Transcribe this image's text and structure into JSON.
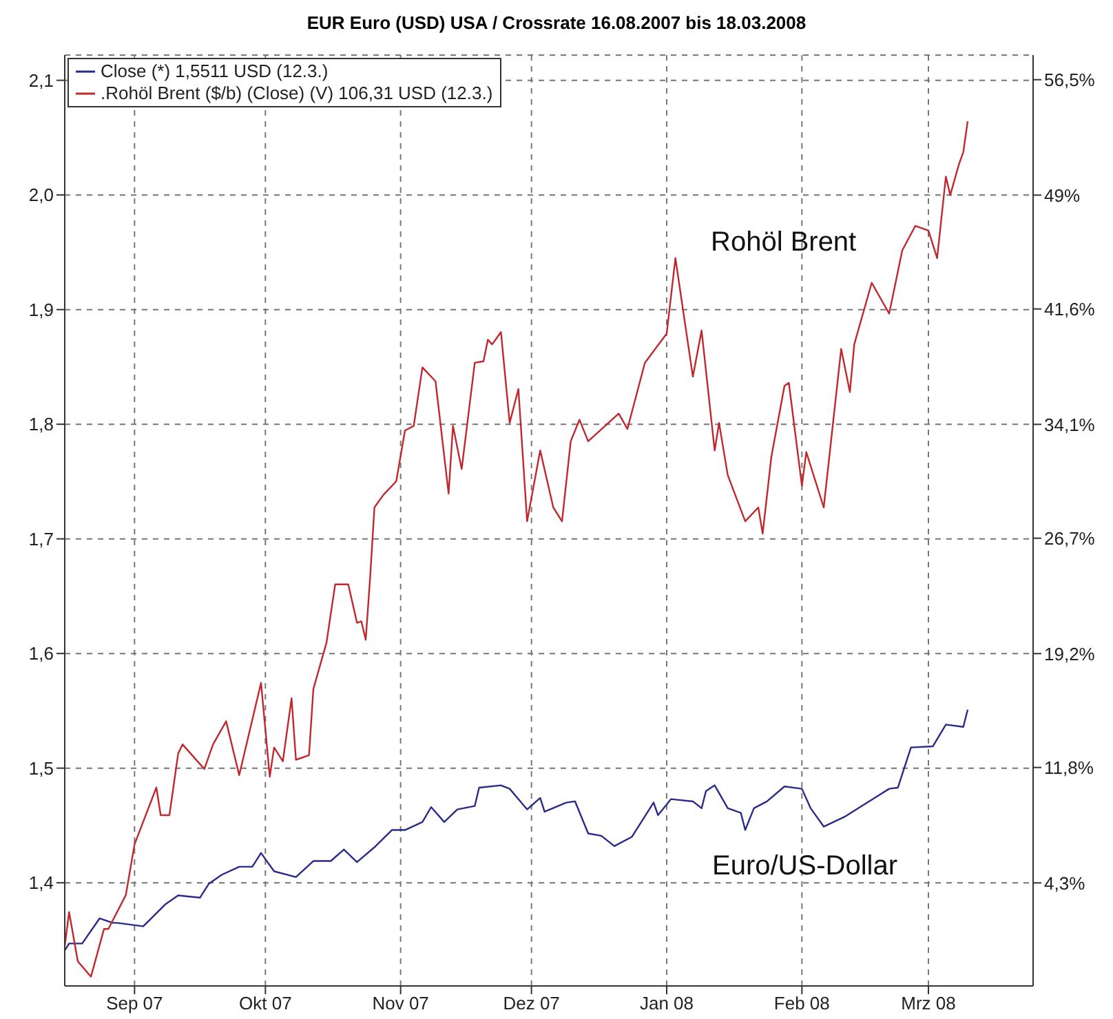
{
  "chart_data": {
    "type": "line",
    "title": "EUR Euro (USD) USA / Crossrate 16.08.2007 bis 18.03.2008",
    "annotations": [
      "Rohöl Brent",
      "Euro/US-Dollar"
    ],
    "xlim": [
      "2007-08-16",
      "2008-03-25"
    ],
    "xticks": [
      {
        "value": "2007-09-01",
        "label": "Sep 07"
      },
      {
        "value": "2007-10-01",
        "label": "Okt 07"
      },
      {
        "value": "2007-11-01",
        "label": "Nov 07"
      },
      {
        "value": "2007-12-01",
        "label": "Dez 07"
      },
      {
        "value": "2008-01-01",
        "label": "Jan 08"
      },
      {
        "value": "2008-02-01",
        "label": "Feb 08"
      },
      {
        "value": "2008-03-01",
        "label": "Mrz 08"
      }
    ],
    "ylim": [
      1.31,
      2.122
    ],
    "yticks": [
      {
        "value": 1.4,
        "label": "1,4"
      },
      {
        "value": 1.5,
        "label": "1,5"
      },
      {
        "value": 1.6,
        "label": "1,6"
      },
      {
        "value": 1.7,
        "label": "1,7"
      },
      {
        "value": 1.8,
        "label": "1,8"
      },
      {
        "value": 1.9,
        "label": "1,9"
      },
      {
        "value": 2.0,
        "label": "2,0"
      },
      {
        "value": 2.1,
        "label": "2,1"
      }
    ],
    "y2lim": [
      -2.4,
      58.1
    ],
    "y2ticks": [
      {
        "value": 4.3,
        "label": "4,3%"
      },
      {
        "value": 11.8,
        "label": "11,8%"
      },
      {
        "value": 19.2,
        "label": "19,2%"
      },
      {
        "value": 26.7,
        "label": "26,7%"
      },
      {
        "value": 34.1,
        "label": "34,1%"
      },
      {
        "value": 41.6,
        "label": "41,6%"
      },
      {
        "value": 49,
        "label": "49%"
      },
      {
        "value": 56.5,
        "label": "56,5%"
      }
    ],
    "grid": true,
    "legend": "top left",
    "series": [
      {
        "name": "Close (*) 1,5511 USD (12.3.)",
        "color": "#2a2a8a",
        "x": [
          "2007-08-16",
          "2007-08-17",
          "2007-08-20",
          "2007-08-24",
          "2007-08-27",
          "2007-08-28",
          "2007-09-03",
          "2007-09-08",
          "2007-09-11",
          "2007-09-16",
          "2007-09-18",
          "2007-09-21",
          "2007-09-25",
          "2007-09-28",
          "2007-09-30",
          "2007-10-03",
          "2007-10-08",
          "2007-10-12",
          "2007-10-16",
          "2007-10-19",
          "2007-10-22",
          "2007-10-26",
          "2007-10-30",
          "2007-11-02",
          "2007-11-06",
          "2007-11-08",
          "2007-11-11",
          "2007-11-14",
          "2007-11-18",
          "2007-11-19",
          "2007-11-24",
          "2007-11-26",
          "2007-11-30",
          "2007-12-03",
          "2007-12-04",
          "2007-12-09",
          "2007-12-11",
          "2007-12-14",
          "2007-12-17",
          "2007-12-20",
          "2007-12-24",
          "2007-12-29",
          "2007-12-30",
          "2008-01-02",
          "2008-01-07",
          "2008-01-09",
          "2008-01-10",
          "2008-01-12",
          "2008-01-15",
          "2008-01-18",
          "2008-01-19",
          "2008-01-21",
          "2008-01-24",
          "2008-01-28",
          "2008-02-01",
          "2008-02-03",
          "2008-02-06",
          "2008-02-11",
          "2008-02-16",
          "2008-02-21",
          "2008-02-23",
          "2008-02-26",
          "2008-03-02",
          "2008-03-05",
          "2008-03-09",
          "2008-03-10"
        ],
        "values": [
          1.341,
          1.347,
          1.347,
          1.369,
          1.365,
          1.365,
          1.362,
          1.381,
          1.389,
          1.387,
          1.399,
          1.407,
          1.414,
          1.414,
          1.426,
          1.41,
          1.405,
          1.419,
          1.419,
          1.429,
          1.418,
          1.431,
          1.446,
          1.446,
          1.453,
          1.466,
          1.453,
          1.464,
          1.467,
          1.483,
          1.485,
          1.482,
          1.464,
          1.474,
          1.462,
          1.47,
          1.471,
          1.443,
          1.441,
          1.432,
          1.44,
          1.47,
          1.459,
          1.473,
          1.471,
          1.465,
          1.48,
          1.485,
          1.465,
          1.461,
          1.446,
          1.465,
          1.471,
          1.484,
          1.482,
          1.465,
          1.449,
          1.458,
          1.47,
          1.482,
          1.483,
          1.518,
          1.519,
          1.538,
          1.536,
          1.551
        ]
      },
      {
        "name": ".Rohöl Brent ($/b) (Close) (V) 106,31 USD (12.3.)",
        "color": "#c0282d",
        "axis": "y2",
        "x": [
          "2007-08-16",
          "2007-08-17",
          "2007-08-19",
          "2007-08-22",
          "2007-08-25",
          "2007-08-26",
          "2007-08-30",
          "2007-09-01",
          "2007-09-06",
          "2007-09-07",
          "2007-09-09",
          "2007-09-11",
          "2007-09-12",
          "2007-09-17",
          "2007-09-19",
          "2007-09-22",
          "2007-09-25",
          "2007-09-30",
          "2007-10-02",
          "2007-10-03",
          "2007-10-05",
          "2007-10-07",
          "2007-10-08",
          "2007-10-11",
          "2007-10-12",
          "2007-10-15",
          "2007-10-17",
          "2007-10-20",
          "2007-10-22",
          "2007-10-23",
          "2007-10-24",
          "2007-10-25",
          "2007-10-26",
          "2007-10-28",
          "2007-10-31",
          "2007-11-02",
          "2007-11-04",
          "2007-11-06",
          "2007-11-09",
          "2007-11-12",
          "2007-11-13",
          "2007-11-15",
          "2007-11-18",
          "2007-11-20",
          "2007-11-21",
          "2007-11-22",
          "2007-11-24",
          "2007-11-26",
          "2007-11-28",
          "2007-11-30",
          "2007-12-03",
          "2007-12-06",
          "2007-12-08",
          "2007-12-10",
          "2007-12-12",
          "2007-12-14",
          "2007-12-21",
          "2007-12-23",
          "2007-12-27",
          "2008-01-01",
          "2008-01-03",
          "2008-01-07",
          "2008-01-09",
          "2008-01-12",
          "2008-01-13",
          "2008-01-15",
          "2008-01-19",
          "2008-01-22",
          "2008-01-23",
          "2008-01-25",
          "2008-01-28",
          "2008-01-29",
          "2008-02-01",
          "2008-02-02",
          "2008-02-06",
          "2008-02-10",
          "2008-02-12",
          "2008-02-13",
          "2008-02-17",
          "2008-02-21",
          "2008-02-24",
          "2008-02-27",
          "2008-03-01",
          "2008-03-03",
          "2008-03-05",
          "2008-03-06",
          "2008-03-08",
          "2008-03-09",
          "2008-03-10"
        ],
        "values": [
          0.2,
          2.4,
          -0.8,
          -1.8,
          1.3,
          1.3,
          3.5,
          6.8,
          10.5,
          8.7,
          8.7,
          12.7,
          13.3,
          11.7,
          13.3,
          14.8,
          11.3,
          17.3,
          11.2,
          13.1,
          12.2,
          16.3,
          12.3,
          12.6,
          16.9,
          19.9,
          23.7,
          23.7,
          21.2,
          21.3,
          20.1,
          24.1,
          28.7,
          29.5,
          30.4,
          33.7,
          34.0,
          37.8,
          36.9,
          29.6,
          34.0,
          31.2,
          38.1,
          38.2,
          39.6,
          39.3,
          40.1,
          34.2,
          36.4,
          27.8,
          32.4,
          28.7,
          27.8,
          33.0,
          34.4,
          33.0,
          34.8,
          33.8,
          38.1,
          40.0,
          44.9,
          37.2,
          40.2,
          32.4,
          34.2,
          30.8,
          27.8,
          28.7,
          27.0,
          32.0,
          36.6,
          36.8,
          30.1,
          32.3,
          28.7,
          39.0,
          36.2,
          39.3,
          43.3,
          41.3,
          45.4,
          47.0,
          46.7,
          44.9,
          50.2,
          49.0,
          51.0,
          51.8,
          53.8
        ]
      }
    ]
  }
}
